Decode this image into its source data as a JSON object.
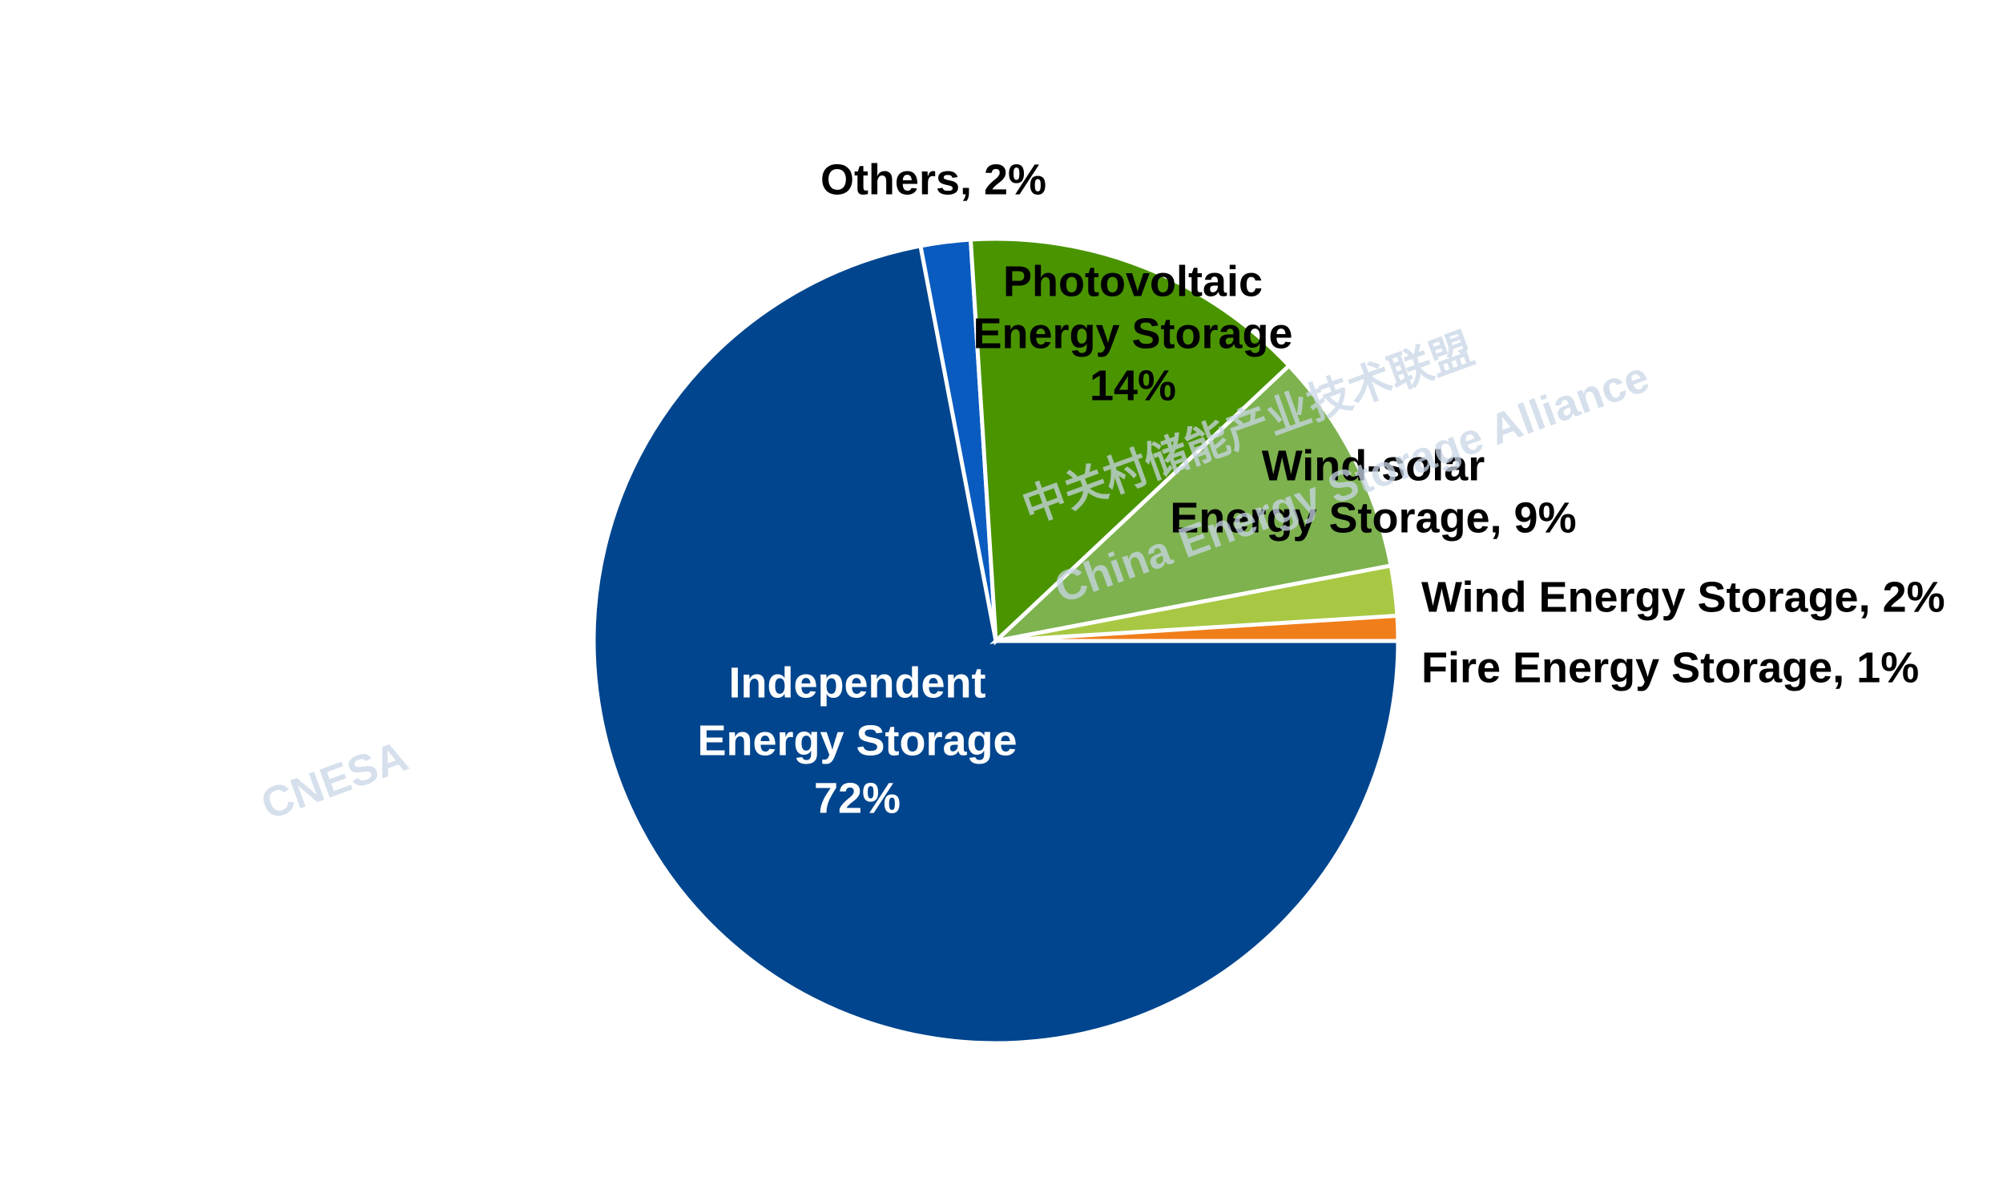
{
  "chart_data": {
    "type": "pie",
    "categories": [
      "Independent Energy Storage",
      "Others",
      "Photovoltaic Energy Storage",
      "Wind-solar Energy Storage",
      "Wind Energy Storage",
      "Fire Energy Storage"
    ],
    "values": [
      72,
      2,
      14,
      9,
      2,
      1
    ],
    "labels": [
      [
        "Independent",
        "Energy Storage",
        "72%"
      ],
      [
        "Others, 2%"
      ],
      [
        "Photovoltaic",
        "Energy Storage",
        "14%"
      ],
      [
        "Wind-solar",
        "Energy Storage, 9%"
      ],
      [
        "Wind Energy Storage, 2%"
      ],
      [
        "Fire Energy Storage, 1%"
      ]
    ],
    "colors": [
      "#00458e",
      "#0a5bbf",
      "#4a9400",
      "#7db24e",
      "#a8c844",
      "#f07e1b"
    ],
    "label_colors": [
      "#ffffff",
      "#000000",
      "#000000",
      "#000000",
      "#000000",
      "#000000"
    ],
    "watermark": {
      "logo": "CNESA",
      "cn": "中关村储能产业技术联盟",
      "en": "China Energy Storage Alliance"
    }
  }
}
